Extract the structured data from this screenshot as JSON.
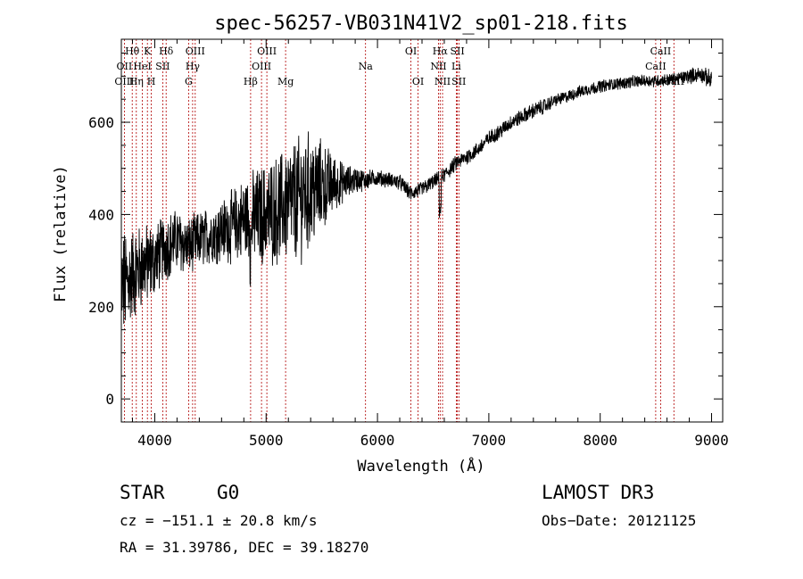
{
  "chart_data": {
    "type": "line",
    "title": "spec-56257-VB031N41V2_sp01-218.fits",
    "xlabel": "Wavelength (Å)",
    "ylabel": "Flux (relative)",
    "xlim": [
      3700,
      9100
    ],
    "ylim": [
      -50,
      780
    ],
    "xticks": [
      4000,
      5000,
      6000,
      7000,
      8000,
      9000
    ],
    "xtick_labels": [
      "4000",
      "5000",
      "6000",
      "7000",
      "8000",
      "9000"
    ],
    "yticks": [
      0,
      200,
      400,
      600
    ],
    "ytick_labels": [
      "0",
      "200",
      "400",
      "600"
    ],
    "grid": false,
    "series": [
      {
        "name": "spectrum",
        "x": [
          3700,
          3800,
          3900,
          4000,
          4100,
          4200,
          4300,
          4400,
          4500,
          4600,
          4700,
          4800,
          4900,
          5000,
          5100,
          5200,
          5300,
          5400,
          5500,
          5600,
          5700,
          5800,
          5900,
          6000,
          6100,
          6200,
          6300,
          6400,
          6500,
          6600,
          6700,
          6800,
          6900,
          7000,
          7100,
          7200,
          7300,
          7400,
          7500,
          7600,
          7700,
          7800,
          7900,
          8000,
          8100,
          8200,
          8300,
          8400,
          8500,
          8600,
          8700,
          8800,
          8900,
          9000
        ],
        "y": [
          240,
          270,
          290,
          300,
          330,
          345,
          330,
          345,
          355,
          365,
          375,
          390,
          395,
          400,
          410,
          425,
          435,
          450,
          460,
          465,
          470,
          475,
          475,
          480,
          475,
          470,
          445,
          455,
          470,
          485,
          510,
          525,
          540,
          565,
          580,
          600,
          612,
          625,
          635,
          648,
          655,
          665,
          672,
          678,
          682,
          685,
          688,
          690,
          690,
          692,
          695,
          700,
          705,
          690
        ],
        "noise": [
          110,
          90,
          80,
          70,
          65,
          60,
          55,
          55,
          55,
          60,
          70,
          80,
          90,
          100,
          105,
          110,
          120,
          115,
          90,
          60,
          35,
          25,
          20,
          15,
          15,
          15,
          15,
          15,
          15,
          15,
          15,
          15,
          15,
          15,
          15,
          15,
          15,
          15,
          15,
          12,
          12,
          12,
          12,
          12,
          12,
          12,
          12,
          12,
          12,
          12,
          12,
          15,
          15,
          20
        ]
      }
    ],
    "line_labels": [
      {
        "text": "Hθ",
        "x": 3798,
        "row": 1
      },
      {
        "text": "K",
        "x": 3934,
        "row": 1
      },
      {
        "text": "Hδ",
        "x": 4102,
        "row": 1
      },
      {
        "text": "OIII",
        "x": 4363,
        "row": 1
      },
      {
        "text": "OIII",
        "x": 5007,
        "row": 1
      },
      {
        "text": "OI",
        "x": 6300,
        "row": 1
      },
      {
        "text": "Hα",
        "x": 6563,
        "row": 1
      },
      {
        "text": "SII",
        "x": 6717,
        "row": 1
      },
      {
        "text": "CaII",
        "x": 8542,
        "row": 1
      },
      {
        "text": "OII",
        "x": 3727,
        "row": 2
      },
      {
        "text": "HeI",
        "x": 3889,
        "row": 2
      },
      {
        "text": "SII",
        "x": 4072,
        "row": 2
      },
      {
        "text": "Hγ",
        "x": 4340,
        "row": 2
      },
      {
        "text": "OIII",
        "x": 4959,
        "row": 2
      },
      {
        "text": "Na",
        "x": 5893,
        "row": 2
      },
      {
        "text": "NII",
        "x": 6548,
        "row": 2
      },
      {
        "text": "Li",
        "x": 6708,
        "row": 2
      },
      {
        "text": "CaII",
        "x": 8498,
        "row": 2
      },
      {
        "text": "OIII",
        "x": 3727,
        "row": 3
      },
      {
        "text": "Hη",
        "x": 3835,
        "row": 3
      },
      {
        "text": "H",
        "x": 3968,
        "row": 3
      },
      {
        "text": "G",
        "x": 4304,
        "row": 3
      },
      {
        "text": "Hβ",
        "x": 4861,
        "row": 3
      },
      {
        "text": "Mg",
        "x": 5175,
        "row": 3
      },
      {
        "text": "OI",
        "x": 6364,
        "row": 3
      },
      {
        "text": "NII",
        "x": 6584,
        "row": 3
      },
      {
        "text": "SII",
        "x": 6731,
        "row": 3
      },
      {
        "text": "CaII",
        "x": 8662,
        "row": 3
      }
    ],
    "line_positions": [
      3727,
      3798,
      3835,
      3889,
      3934,
      3968,
      4072,
      4102,
      4304,
      4340,
      4363,
      4861,
      4959,
      5007,
      5175,
      5893,
      6300,
      6364,
      6548,
      6563,
      6584,
      6708,
      6717,
      6731,
      8498,
      8542,
      8662
    ]
  },
  "info": {
    "class": "STAR",
    "subclass": "G0",
    "survey": "LAMOST DR3",
    "cz": "cz = −151.1 ± 20.8 km/s",
    "obs_date": "Obs−Date: 20121125",
    "radec": "RA =  31.39786, DEC =  39.18270"
  },
  "colors": {
    "axes": "#000000",
    "spectrum": "#000000",
    "lines": "#b00000",
    "background": "#ffffff"
  }
}
